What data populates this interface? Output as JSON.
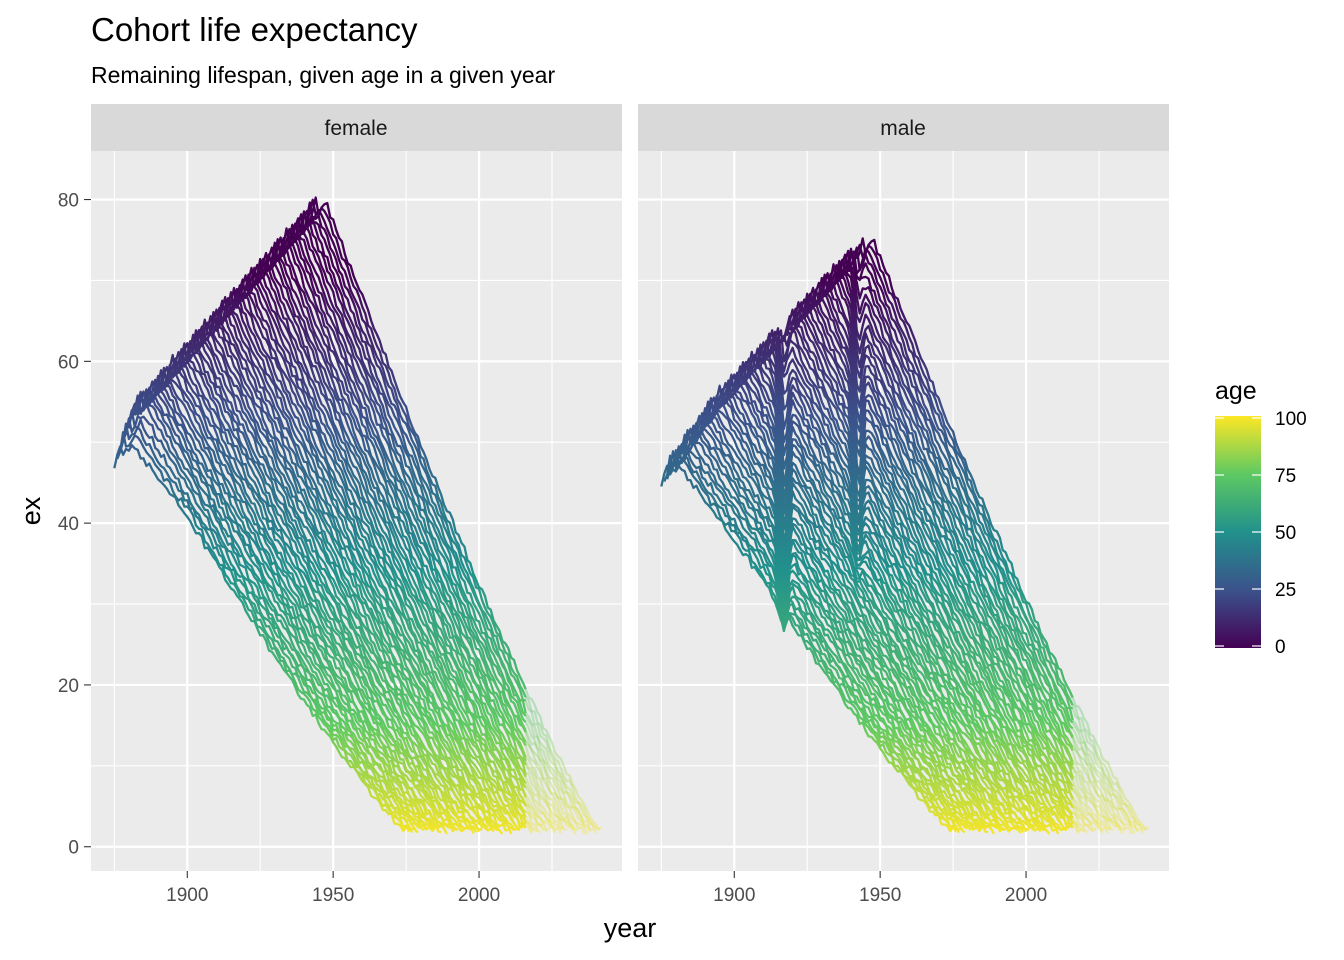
{
  "chart_data": {
    "type": "line",
    "title": "Cohort life expectancy",
    "subtitle": "Remaining lifespan, given age in a given year",
    "xlabel": "year",
    "ylabel": "ex",
    "xlim": [
      1867,
      2049
    ],
    "ylim": [
      -3,
      86
    ],
    "x_ticks": [
      "1900",
      "1950",
      "2000"
    ],
    "y_ticks": [
      "0",
      "20",
      "40",
      "60",
      "80"
    ],
    "grid": true,
    "facets": [
      "female",
      "male"
    ],
    "legend": {
      "title": "age",
      "position": "right",
      "ticks": [
        "0",
        "25",
        "50",
        "75",
        "100"
      ],
      "range": [
        0,
        100
      ]
    },
    "color_scale": "viridis",
    "cohort_series": {
      "birth_year_first": 1875,
      "birth_year_last": 1942,
      "age_max": 100,
      "observed_until_year": 2016,
      "female": {
        "ex_at_birth_first": 54.1,
        "ex_at_birth_last": 81.1,
        "ex_at_birth_1880": 60.8
      },
      "male": {
        "ex_at_birth_first": 50.6,
        "ex_at_birth_last": 76.5,
        "ex_at_birth_1880": 58.0,
        "ex_at_birth_1918_dip": 33.0,
        "ex_at_birth_1942_dip": 44.0
      }
    },
    "colors": {
      "panel_bg": "#ebebeb",
      "strip_bg": "#d9d9d9",
      "grid": "#ffffff",
      "viridis": [
        "#440154",
        "#3b528b",
        "#21918c",
        "#5ec962",
        "#fde725"
      ]
    }
  }
}
